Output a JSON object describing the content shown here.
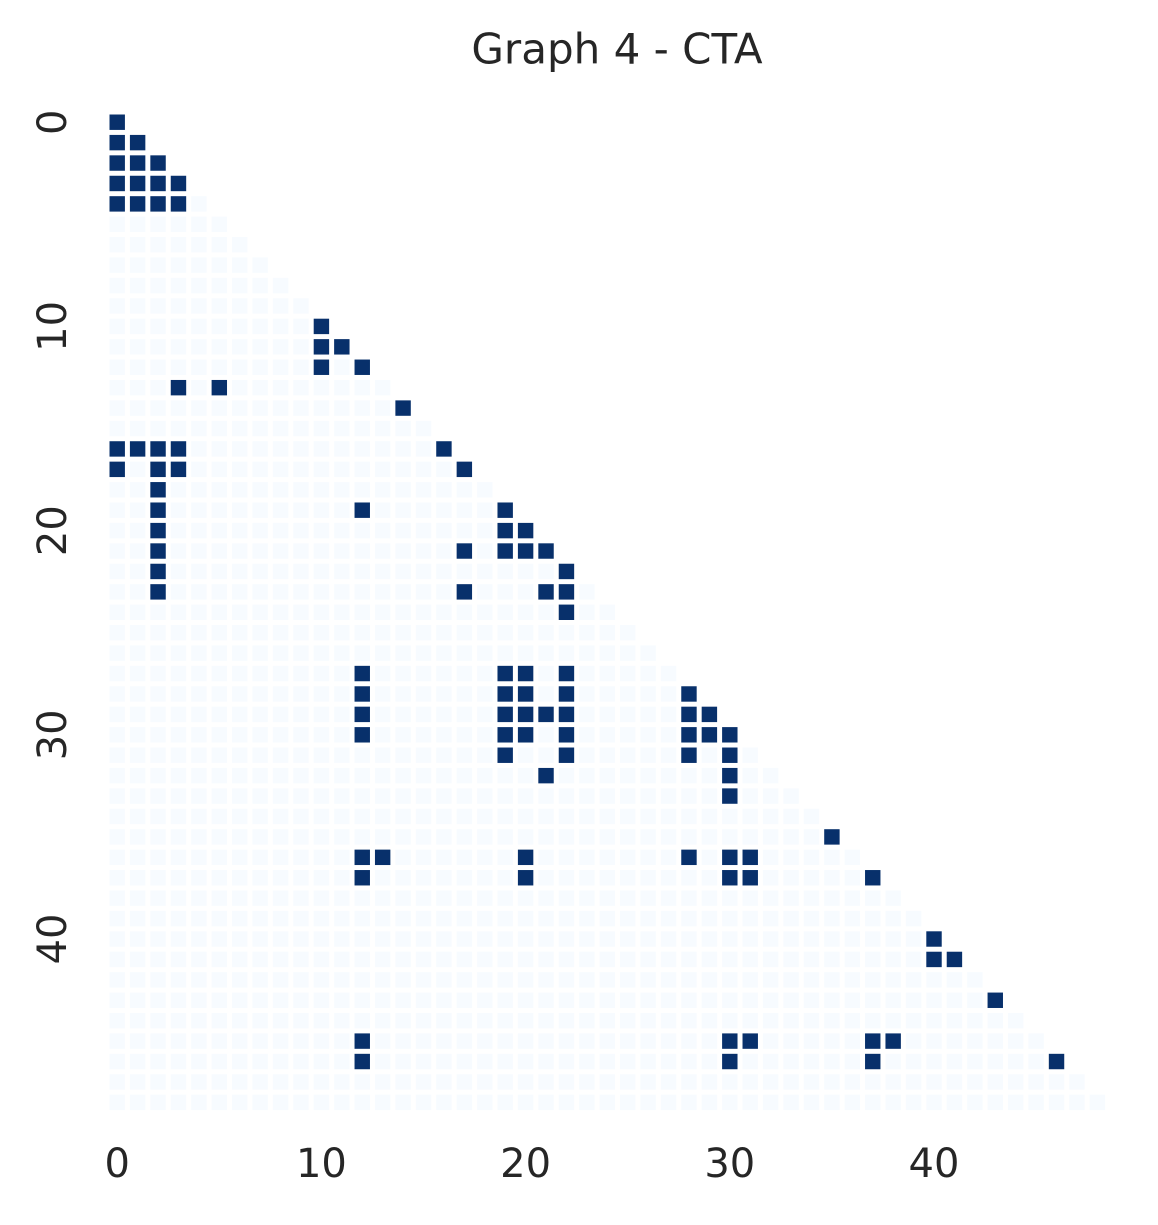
{
  "chart_data": {
    "type": "heatmap",
    "title": "Graph 4 - CTA",
    "color_scale": [
      "#f7fbff",
      "#08306b"
    ],
    "xticks": [
      0,
      10,
      20,
      30,
      40
    ],
    "yticks": [
      0,
      10,
      20,
      30,
      40
    ],
    "matrix": [
      [
        1
      ],
      [
        1,
        1
      ],
      [
        1,
        1,
        1
      ],
      [
        1,
        1,
        1,
        1
      ],
      [
        1,
        1,
        1,
        1,
        0
      ],
      [
        0,
        0,
        0,
        0,
        0,
        0
      ],
      [
        0,
        0,
        0,
        0,
        0,
        0,
        0
      ],
      [
        0,
        0,
        0,
        0,
        0,
        0,
        0,
        0
      ],
      [
        0,
        0,
        0,
        0,
        0,
        0,
        0,
        0,
        0
      ],
      [
        0,
        0,
        0,
        0,
        0,
        0,
        0,
        0,
        0,
        0
      ],
      [
        0,
        0,
        0,
        0,
        0,
        0,
        0,
        0,
        0,
        0,
        1
      ],
      [
        0,
        0,
        0,
        0,
        0,
        0,
        0,
        0,
        0,
        0,
        1,
        1
      ],
      [
        0,
        0,
        0,
        0,
        0,
        0,
        0,
        0,
        0,
        0,
        1,
        0,
        1
      ],
      [
        0,
        0,
        0,
        1,
        0,
        1,
        0,
        0,
        0,
        0,
        0,
        0,
        0,
        0
      ],
      [
        0,
        0,
        0,
        0,
        0,
        0,
        0,
        0,
        0,
        0,
        0,
        0,
        0,
        0,
        1
      ],
      [
        0,
        0,
        0,
        0,
        0,
        0,
        0,
        0,
        0,
        0,
        0,
        0,
        0,
        0,
        0,
        0
      ],
      [
        1,
        1,
        1,
        1,
        0,
        0,
        0,
        0,
        0,
        0,
        0,
        0,
        0,
        0,
        0,
        0,
        1
      ],
      [
        1,
        0,
        1,
        1,
        0,
        0,
        0,
        0,
        0,
        0,
        0,
        0,
        0,
        0,
        0,
        0,
        0,
        1
      ],
      [
        0,
        0,
        1,
        0,
        0,
        0,
        0,
        0,
        0,
        0,
        0,
        0,
        0,
        0,
        0,
        0,
        0,
        0,
        0
      ],
      [
        0,
        0,
        1,
        0,
        0,
        0,
        0,
        0,
        0,
        0,
        0,
        0,
        1,
        0,
        0,
        0,
        0,
        0,
        0,
        1
      ],
      [
        0,
        0,
        1,
        0,
        0,
        0,
        0,
        0,
        0,
        0,
        0,
        0,
        0,
        0,
        0,
        0,
        0,
        0,
        0,
        1,
        1
      ],
      [
        0,
        0,
        1,
        0,
        0,
        0,
        0,
        0,
        0,
        0,
        0,
        0,
        0,
        0,
        0,
        0,
        0,
        1,
        0,
        1,
        1,
        1
      ],
      [
        0,
        0,
        1,
        0,
        0,
        0,
        0,
        0,
        0,
        0,
        0,
        0,
        0,
        0,
        0,
        0,
        0,
        0,
        0,
        0,
        0,
        0,
        1
      ],
      [
        0,
        0,
        1,
        0,
        0,
        0,
        0,
        0,
        0,
        0,
        0,
        0,
        0,
        0,
        0,
        0,
        0,
        1,
        0,
        0,
        0,
        1,
        1,
        0
      ],
      [
        0,
        0,
        0,
        0,
        0,
        0,
        0,
        0,
        0,
        0,
        0,
        0,
        0,
        0,
        0,
        0,
        0,
        0,
        0,
        0,
        0,
        0,
        1,
        0,
        0
      ],
      [
        0,
        0,
        0,
        0,
        0,
        0,
        0,
        0,
        0,
        0,
        0,
        0,
        0,
        0,
        0,
        0,
        0,
        0,
        0,
        0,
        0,
        0,
        0,
        0,
        0,
        0
      ],
      [
        0,
        0,
        0,
        0,
        0,
        0,
        0,
        0,
        0,
        0,
        0,
        0,
        0,
        0,
        0,
        0,
        0,
        0,
        0,
        0,
        0,
        0,
        0,
        0,
        0,
        0,
        0
      ],
      [
        0,
        0,
        0,
        0,
        0,
        0,
        0,
        0,
        0,
        0,
        0,
        0,
        1,
        0,
        0,
        0,
        0,
        0,
        0,
        1,
        1,
        0,
        1,
        0,
        0,
        0,
        0,
        0
      ],
      [
        0,
        0,
        0,
        0,
        0,
        0,
        0,
        0,
        0,
        0,
        0,
        0,
        1,
        0,
        0,
        0,
        0,
        0,
        0,
        1,
        1,
        0,
        1,
        0,
        0,
        0,
        0,
        0,
        1
      ],
      [
        0,
        0,
        0,
        0,
        0,
        0,
        0,
        0,
        0,
        0,
        0,
        0,
        1,
        0,
        0,
        0,
        0,
        0,
        0,
        1,
        1,
        1,
        1,
        0,
        0,
        0,
        0,
        0,
        1,
        1
      ],
      [
        0,
        0,
        0,
        0,
        0,
        0,
        0,
        0,
        0,
        0,
        0,
        0,
        1,
        0,
        0,
        0,
        0,
        0,
        0,
        1,
        1,
        0,
        1,
        0,
        0,
        0,
        0,
        0,
        1,
        1,
        1
      ],
      [
        0,
        0,
        0,
        0,
        0,
        0,
        0,
        0,
        0,
        0,
        0,
        0,
        0,
        0,
        0,
        0,
        0,
        0,
        0,
        1,
        0,
        0,
        1,
        0,
        0,
        0,
        0,
        0,
        1,
        0,
        1,
        0
      ],
      [
        0,
        0,
        0,
        0,
        0,
        0,
        0,
        0,
        0,
        0,
        0,
        0,
        0,
        0,
        0,
        0,
        0,
        0,
        0,
        0,
        0,
        1,
        0,
        0,
        0,
        0,
        0,
        0,
        0,
        0,
        1,
        0,
        0
      ],
      [
        0,
        0,
        0,
        0,
        0,
        0,
        0,
        0,
        0,
        0,
        0,
        0,
        0,
        0,
        0,
        0,
        0,
        0,
        0,
        0,
        0,
        0,
        0,
        0,
        0,
        0,
        0,
        0,
        0,
        0,
        1,
        0,
        0,
        0
      ],
      [
        0,
        0,
        0,
        0,
        0,
        0,
        0,
        0,
        0,
        0,
        0,
        0,
        0,
        0,
        0,
        0,
        0,
        0,
        0,
        0,
        0,
        0,
        0,
        0,
        0,
        0,
        0,
        0,
        0,
        0,
        0,
        0,
        0,
        0,
        0
      ],
      [
        0,
        0,
        0,
        0,
        0,
        0,
        0,
        0,
        0,
        0,
        0,
        0,
        0,
        0,
        0,
        0,
        0,
        0,
        0,
        0,
        0,
        0,
        0,
        0,
        0,
        0,
        0,
        0,
        0,
        0,
        0,
        0,
        0,
        0,
        0,
        1
      ],
      [
        0,
        0,
        0,
        0,
        0,
        0,
        0,
        0,
        0,
        0,
        0,
        0,
        1,
        1,
        0,
        0,
        0,
        0,
        0,
        0,
        1,
        0,
        0,
        0,
        0,
        0,
        0,
        0,
        1,
        0,
        1,
        1,
        0,
        0,
        0,
        0,
        0
      ],
      [
        0,
        0,
        0,
        0,
        0,
        0,
        0,
        0,
        0,
        0,
        0,
        0,
        1,
        0,
        0,
        0,
        0,
        0,
        0,
        0,
        1,
        0,
        0,
        0,
        0,
        0,
        0,
        0,
        0,
        0,
        1,
        1,
        0,
        0,
        0,
        0,
        0,
        1
      ],
      [
        0,
        0,
        0,
        0,
        0,
        0,
        0,
        0,
        0,
        0,
        0,
        0,
        0,
        0,
        0,
        0,
        0,
        0,
        0,
        0,
        0,
        0,
        0,
        0,
        0,
        0,
        0,
        0,
        0,
        0,
        0,
        0,
        0,
        0,
        0,
        0,
        0,
        0,
        0
      ],
      [
        0,
        0,
        0,
        0,
        0,
        0,
        0,
        0,
        0,
        0,
        0,
        0,
        0,
        0,
        0,
        0,
        0,
        0,
        0,
        0,
        0,
        0,
        0,
        0,
        0,
        0,
        0,
        0,
        0,
        0,
        0,
        0,
        0,
        0,
        0,
        0,
        0,
        0,
        0,
        0
      ],
      [
        0,
        0,
        0,
        0,
        0,
        0,
        0,
        0,
        0,
        0,
        0,
        0,
        0,
        0,
        0,
        0,
        0,
        0,
        0,
        0,
        0,
        0,
        0,
        0,
        0,
        0,
        0,
        0,
        0,
        0,
        0,
        0,
        0,
        0,
        0,
        0,
        0,
        0,
        0,
        0,
        1
      ],
      [
        0,
        0,
        0,
        0,
        0,
        0,
        0,
        0,
        0,
        0,
        0,
        0,
        0,
        0,
        0,
        0,
        0,
        0,
        0,
        0,
        0,
        0,
        0,
        0,
        0,
        0,
        0,
        0,
        0,
        0,
        0,
        0,
        0,
        0,
        0,
        0,
        0,
        0,
        0,
        0,
        1,
        1
      ],
      [
        0,
        0,
        0,
        0,
        0,
        0,
        0,
        0,
        0,
        0,
        0,
        0,
        0,
        0,
        0,
        0,
        0,
        0,
        0,
        0,
        0,
        0,
        0,
        0,
        0,
        0,
        0,
        0,
        0,
        0,
        0,
        0,
        0,
        0,
        0,
        0,
        0,
        0,
        0,
        0,
        0,
        0,
        0
      ],
      [
        0,
        0,
        0,
        0,
        0,
        0,
        0,
        0,
        0,
        0,
        0,
        0,
        0,
        0,
        0,
        0,
        0,
        0,
        0,
        0,
        0,
        0,
        0,
        0,
        0,
        0,
        0,
        0,
        0,
        0,
        0,
        0,
        0,
        0,
        0,
        0,
        0,
        0,
        0,
        0,
        0,
        0,
        0,
        1
      ],
      [
        0,
        0,
        0,
        0,
        0,
        0,
        0,
        0,
        0,
        0,
        0,
        0,
        0,
        0,
        0,
        0,
        0,
        0,
        0,
        0,
        0,
        0,
        0,
        0,
        0,
        0,
        0,
        0,
        0,
        0,
        0,
        0,
        0,
        0,
        0,
        0,
        0,
        0,
        0,
        0,
        0,
        0,
        0,
        0,
        0
      ],
      [
        0,
        0,
        0,
        0,
        0,
        0,
        0,
        0,
        0,
        0,
        0,
        0,
        1,
        0,
        0,
        0,
        0,
        0,
        0,
        0,
        0,
        0,
        0,
        0,
        0,
        0,
        0,
        0,
        0,
        0,
        1,
        1,
        0,
        0,
        0,
        0,
        0,
        1,
        1,
        0,
        0,
        0,
        0,
        0,
        0,
        0
      ],
      [
        0,
        0,
        0,
        0,
        0,
        0,
        0,
        0,
        0,
        0,
        0,
        0,
        1,
        0,
        0,
        0,
        0,
        0,
        0,
        0,
        0,
        0,
        0,
        0,
        0,
        0,
        0,
        0,
        0,
        0,
        1,
        0,
        0,
        0,
        0,
        0,
        0,
        1,
        0,
        0,
        0,
        0,
        0,
        0,
        0,
        0,
        1
      ],
      [
        0,
        0,
        0,
        0,
        0,
        0,
        0,
        0,
        0,
        0,
        0,
        0,
        0,
        0,
        0,
        0,
        0,
        0,
        0,
        0,
        0,
        0,
        0,
        0,
        0,
        0,
        0,
        0,
        0,
        0,
        0,
        0,
        0,
        0,
        0,
        0,
        0,
        0,
        0,
        0,
        0,
        0,
        0,
        0,
        0,
        0,
        0,
        0
      ],
      [
        0,
        0,
        0,
        0,
        0,
        0,
        0,
        0,
        0,
        0,
        0,
        0,
        0,
        0,
        0,
        0,
        0,
        0,
        0,
        0,
        0,
        0,
        0,
        0,
        0,
        0,
        0,
        0,
        0,
        0,
        0,
        0,
        0,
        0,
        0,
        0,
        0,
        0,
        0,
        0,
        0,
        0,
        0,
        0,
        0,
        0,
        0,
        0,
        0
      ]
    ]
  }
}
